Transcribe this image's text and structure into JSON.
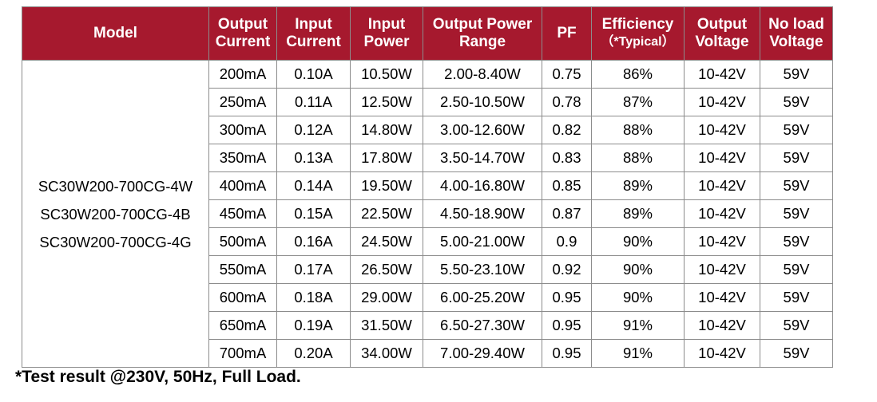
{
  "table": {
    "headers": [
      {
        "line1": "Model",
        "line2": ""
      },
      {
        "line1": "Output",
        "line2": "Current"
      },
      {
        "line1": "Input",
        "line2": "Current"
      },
      {
        "line1": "Input",
        "line2": "Power"
      },
      {
        "line1": "Output Power",
        "line2": "Range"
      },
      {
        "line1": "PF",
        "line2": ""
      },
      {
        "line1": "Efficiency",
        "line2": "（*Typical）"
      },
      {
        "line1": "Output",
        "line2": "Voltage"
      },
      {
        "line1": "No load",
        "line2": "Voltage"
      }
    ],
    "models": [
      "SC30W200-700CG-4W",
      "SC30W200-700CG-4B",
      "SC30W200-700CG-4G"
    ],
    "rows": [
      [
        "200mA",
        "0.10A",
        "10.50W",
        "2.00-8.40W",
        "0.75",
        "86%",
        "10-42V",
        "59V"
      ],
      [
        "250mA",
        "0.11A",
        "12.50W",
        "2.50-10.50W",
        "0.78",
        "87%",
        "10-42V",
        "59V"
      ],
      [
        "300mA",
        "0.12A",
        "14.80W",
        "3.00-12.60W",
        "0.82",
        "88%",
        "10-42V",
        "59V"
      ],
      [
        "350mA",
        "0.13A",
        "17.80W",
        "3.50-14.70W",
        "0.83",
        "88%",
        "10-42V",
        "59V"
      ],
      [
        "400mA",
        "0.14A",
        "19.50W",
        "4.00-16.80W",
        "0.85",
        "89%",
        "10-42V",
        "59V"
      ],
      [
        "450mA",
        "0.15A",
        "22.50W",
        "4.50-18.90W",
        "0.87",
        "89%",
        "10-42V",
        "59V"
      ],
      [
        "500mA",
        "0.16A",
        "24.50W",
        "5.00-21.00W",
        "0.9",
        "90%",
        "10-42V",
        "59V"
      ],
      [
        "550mA",
        "0.17A",
        "26.50W",
        "5.50-23.10W",
        "0.92",
        "90%",
        "10-42V",
        "59V"
      ],
      [
        "600mA",
        "0.18A",
        "29.00W",
        "6.00-25.20W",
        "0.95",
        "90%",
        "10-42V",
        "59V"
      ],
      [
        "650mA",
        "0.19A",
        "31.50W",
        "6.50-27.30W",
        "0.95",
        "91%",
        "10-42V",
        "59V"
      ],
      [
        "700mA",
        "0.20A",
        "34.00W",
        "7.00-29.40W",
        "0.95",
        "91%",
        "10-42V",
        "59V"
      ]
    ]
  },
  "footnote": "*Test result @230V, 50Hz, Full Load.",
  "colors": {
    "header_bg": "#a6192e",
    "header_text": "#ffffff",
    "border": "#8c8c8c"
  }
}
